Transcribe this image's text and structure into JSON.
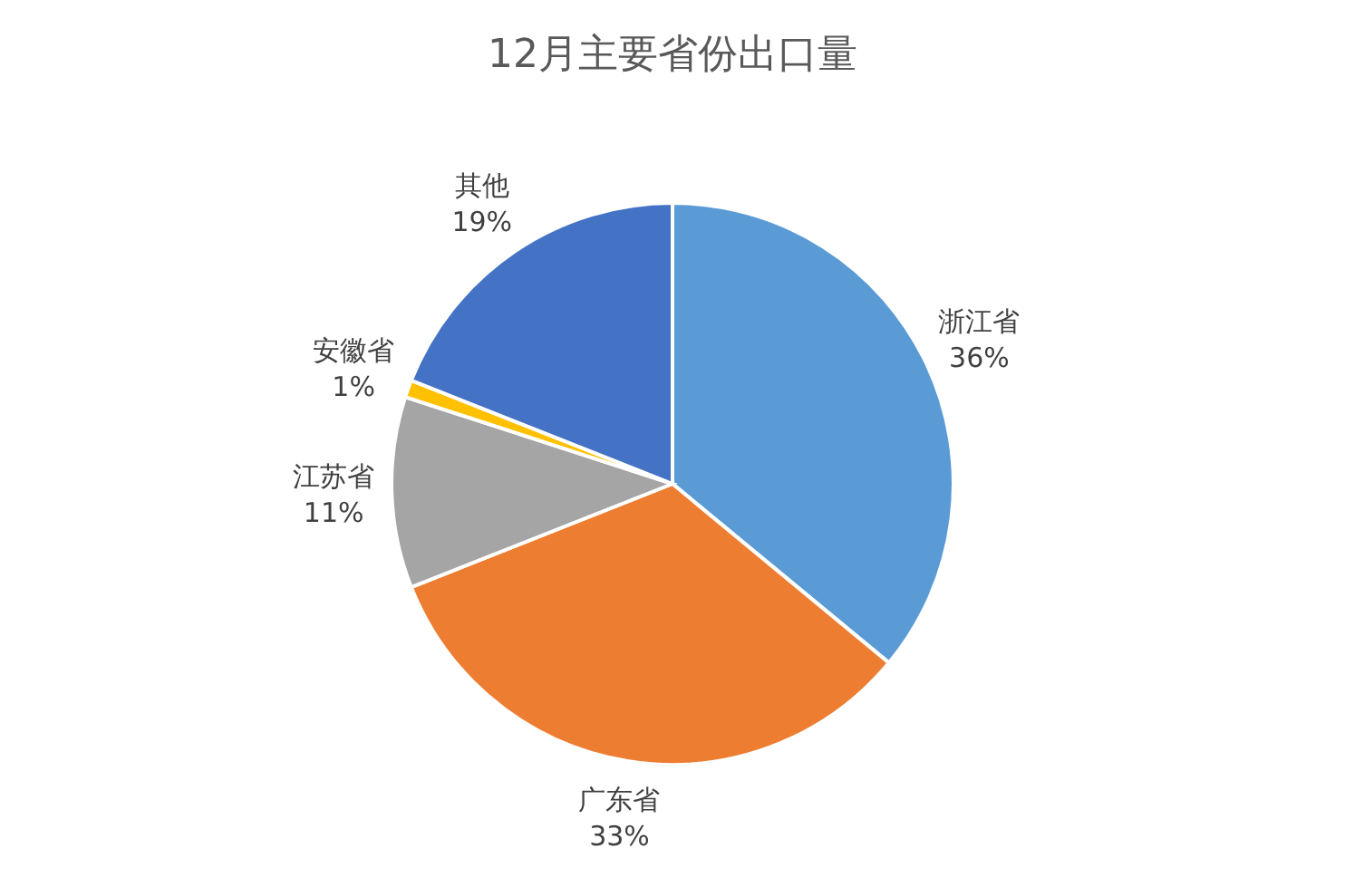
{
  "chart_data": {
    "type": "pie",
    "title": "12月主要省份出口量",
    "categories": [
      "浙江省",
      "广东省",
      "江苏省",
      "安徽省",
      "其他"
    ],
    "values": [
      36,
      33,
      11,
      1,
      19
    ],
    "colors": [
      "#5b9bd5",
      "#ed7d31",
      "#a5a5a5",
      "#ffc000",
      "#4472c4"
    ],
    "value_labels": [
      "36%",
      "33%",
      "11%",
      "1%",
      "19%"
    ],
    "legend": false
  }
}
